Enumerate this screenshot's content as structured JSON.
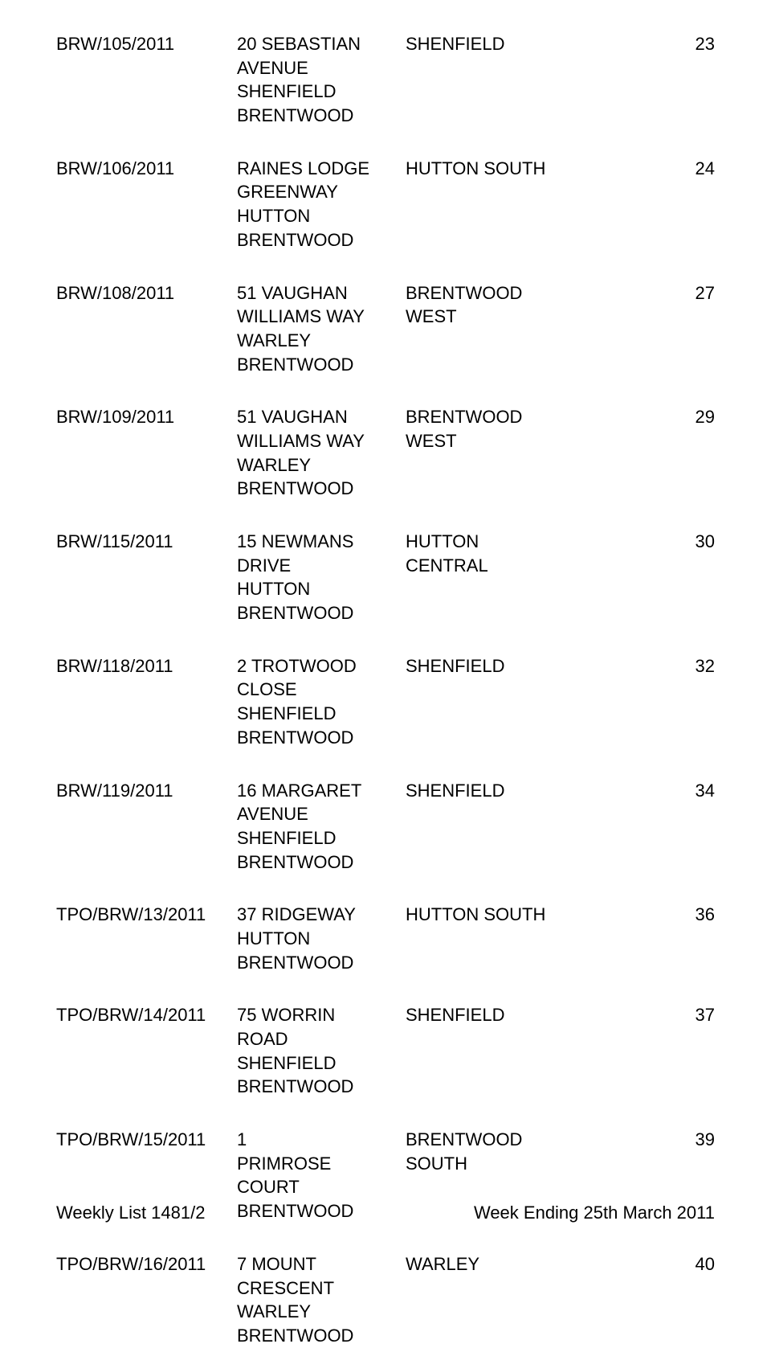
{
  "text_color": "#000000",
  "background_color": "#ffffff",
  "font_size_pt": 16,
  "rows": [
    {
      "ref": "BRW/105/2011",
      "address": "20 SEBASTIAN\nAVENUE\nSHENFIELD\nBRENTWOOD",
      "ward": "SHENFIELD",
      "page": "23"
    },
    {
      "ref": "BRW/106/2011",
      "address": "RAINES LODGE\nGREENWAY\nHUTTON\nBRENTWOOD",
      "ward": "HUTTON SOUTH",
      "page": "24"
    },
    {
      "ref": "BRW/108/2011",
      "address": "51 VAUGHAN\nWILLIAMS WAY\nWARLEY\nBRENTWOOD",
      "ward": "BRENTWOOD\nWEST",
      "page": "27"
    },
    {
      "ref": "BRW/109/2011",
      "address": "51 VAUGHAN\nWILLIAMS WAY\nWARLEY\nBRENTWOOD",
      "ward": "BRENTWOOD\nWEST",
      "page": "29"
    },
    {
      "ref": "BRW/115/2011",
      "address": "15 NEWMANS\nDRIVE\nHUTTON\nBRENTWOOD",
      "ward": "HUTTON\nCENTRAL",
      "page": "30"
    },
    {
      "ref": "BRW/118/2011",
      "address": "2 TROTWOOD\nCLOSE\nSHENFIELD\nBRENTWOOD",
      "ward": "SHENFIELD",
      "page": "32"
    },
    {
      "ref": "BRW/119/2011",
      "address": "16 MARGARET\nAVENUE\nSHENFIELD\nBRENTWOOD",
      "ward": "SHENFIELD",
      "page": "34"
    },
    {
      "ref": "TPO/BRW/13/2011",
      "address": "37 RIDGEWAY\nHUTTON\nBRENTWOOD",
      "ward": "HUTTON SOUTH",
      "page": "36"
    },
    {
      "ref": "TPO/BRW/14/2011",
      "address": "75 WORRIN\nROAD\nSHENFIELD\nBRENTWOOD",
      "ward": "SHENFIELD",
      "page": "37"
    },
    {
      "ref": "TPO/BRW/15/2011",
      "address": "1\nPRIMROSE\nCOURT\nBRENTWOOD",
      "ward": "BRENTWOOD\nSOUTH",
      "page": "39"
    },
    {
      "ref": "TPO/BRW/16/2011",
      "address": "7 MOUNT\nCRESCENT\nWARLEY\nBRENTWOOD",
      "ward": "WARLEY",
      "page": "40"
    }
  ],
  "footer": {
    "left": "Weekly List 1481/2",
    "right": "Week Ending 25th March 2011"
  }
}
